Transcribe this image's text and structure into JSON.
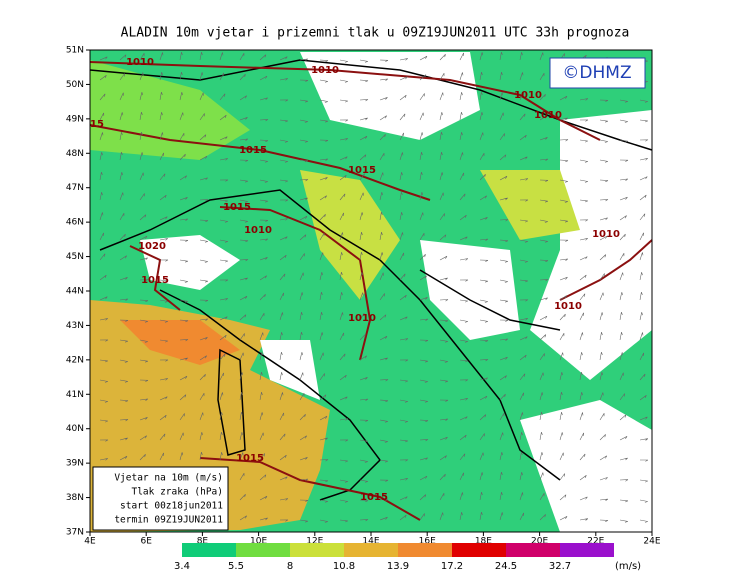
{
  "title": "ALADIN 10m vjetar i prizemni tlak u 09Z19JUN2011 UTC 33h prognoza",
  "logo": "©DHMZ",
  "lat_ticks": [
    "51N",
    "50N",
    "49N",
    "48N",
    "47N",
    "46N",
    "45N",
    "44N",
    "43N",
    "42N",
    "41N",
    "40N",
    "39N",
    "38N",
    "37N"
  ],
  "lon_ticks": [
    "4E",
    "6E",
    "8E",
    "10E",
    "12E",
    "14E",
    "16E",
    "18E",
    "20E",
    "22E",
    "24E"
  ],
  "info_box": [
    "Vjetar na 10m (m/s)",
    "Tlak zraka (hPa)",
    "start 00z18jun2011",
    "termin 09Z19JUN2011"
  ],
  "isobar_labels": [
    "1010",
    "1010",
    "1010",
    "1010",
    "15",
    "1015",
    "1015",
    "1015",
    "1010",
    "1020",
    "1015",
    "1010",
    "1010",
    "1010",
    "1015",
    "1015"
  ],
  "colorbar": {
    "values": [
      3.4,
      5.5,
      8,
      10.8,
      13.9,
      17.2,
      24.5,
      32.7
    ],
    "colors": [
      "#10cc78",
      "#70dd40",
      "#cbe03a",
      "#e6b432",
      "#f08a30",
      "#e00000",
      "#d0006a",
      "#9a10cc"
    ],
    "unit": "(m/s)"
  }
}
